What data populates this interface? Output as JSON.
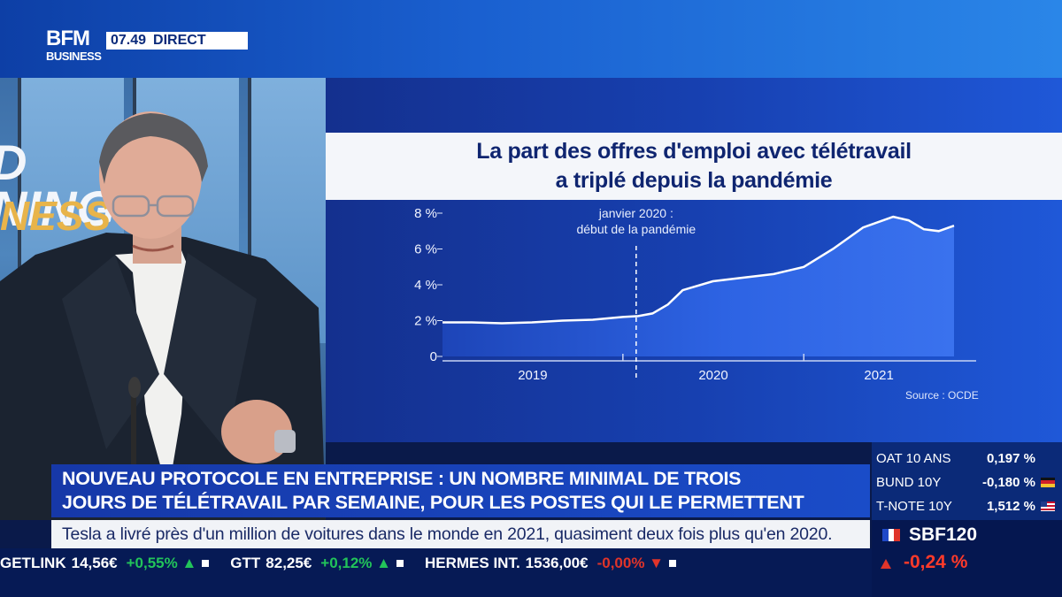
{
  "channel": {
    "logo_line1": "BFM",
    "logo_line2": "BUSINESS",
    "time": "07.49",
    "live_label": "DIRECT"
  },
  "studio": {
    "sign_line1": "D",
    "sign_line2": "NING",
    "sign_line3": "NESS"
  },
  "chart_data": {
    "type": "area",
    "title_line1": "La part des offres d'emploi avec télétravail",
    "title_line2": "a triplé depuis la pandémie",
    "y_tick_labels": [
      "8 %",
      "6 %",
      "4 %",
      "2 %",
      "0"
    ],
    "y_ticks": [
      8,
      6,
      4,
      2,
      0
    ],
    "ylim": [
      0,
      8
    ],
    "x_tick_labels": [
      "2019",
      "2020",
      "2021"
    ],
    "x": [
      "2019-01",
      "2019-03",
      "2019-05",
      "2019-07",
      "2019-09",
      "2019-11",
      "2020-01",
      "2020-02",
      "2020-03",
      "2020-04",
      "2020-05",
      "2020-07",
      "2020-09",
      "2020-11",
      "2021-01",
      "2021-03",
      "2021-05",
      "2021-07",
      "2021-08",
      "2021-09",
      "2021-10",
      "2021-11"
    ],
    "values": [
      1.9,
      1.9,
      1.85,
      1.9,
      2.0,
      2.05,
      2.2,
      2.25,
      2.4,
      2.9,
      3.7,
      4.2,
      4.4,
      4.6,
      5.0,
      6.0,
      7.2,
      7.8,
      7.6,
      7.1,
      7.0,
      7.3
    ],
    "annotation_line1": "janvier 2020 :",
    "annotation_line2": "début de la pandémie",
    "annotation_x": "2020-01",
    "source": "Source : OCDE",
    "grid": false,
    "colors": {
      "area_light": "#2d63e3",
      "area_dark": "#1d45b8"
    }
  },
  "headline": {
    "line1": "NOUVEAU PROTOCOLE EN ENTREPRISE : UN NOMBRE MINIMAL DE TROIS",
    "line2": "JOURS DE TÉLÉTRAVAIL PAR SEMAINE, POUR LES POSTES QUI LE PERMETTENT"
  },
  "info_crawl": "Tesla a livré près d'un million de voitures dans le monde en 2021, quasiment deux fois plus qu'en 2020.",
  "ticker": [
    {
      "name": "GETLINK",
      "price": "14,56€",
      "change": "+0,55%",
      "dir": "up"
    },
    {
      "name": "GTT",
      "price": "82,25€",
      "change": "+0,12%",
      "dir": "up"
    },
    {
      "name": "HERMES INT.",
      "price": "1536,00€",
      "change": "-0,00%",
      "dir": "down"
    }
  ],
  "market": {
    "rates": [
      {
        "name": "OAT 10 ANS",
        "value": "0,197 %",
        "flag": "fr"
      },
      {
        "name": "BUND 10Y",
        "value": "-0,180 %",
        "flag": "de"
      },
      {
        "name": "T-NOTE 10Y",
        "value": "1,512 %",
        "flag": "us"
      }
    ],
    "index_name": "SBF120",
    "index_change": "-0,24 %"
  },
  "colors": {
    "brand_blue": "#1a4cc8",
    "ticker_bg": "#061a55",
    "positive": "#22c45a",
    "negative": "#e0342a"
  }
}
